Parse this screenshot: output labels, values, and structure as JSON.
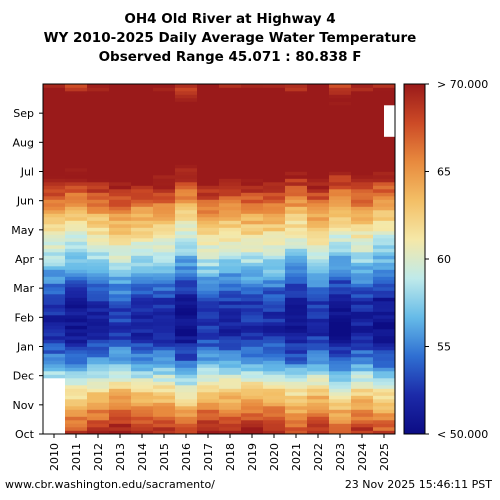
{
  "chart_data": {
    "type": "heatmap",
    "title": "OH4 Old River at Highway 4",
    "subtitle": "WY 2010-2025 Daily Average Water Temperature",
    "range_note": "Observed Range 45.071 : 80.838 F",
    "x": [
      "2010",
      "2011",
      "2012",
      "2013",
      "2014",
      "2015",
      "2016",
      "2017",
      "2018",
      "2019",
      "2020",
      "2021",
      "2022",
      "2023",
      "2024",
      "2025"
    ],
    "y_ticks": [
      "Oct",
      "Nov",
      "Dec",
      "Jan",
      "Feb",
      "Mar",
      "Apr",
      "May",
      "Jun",
      "Jul",
      "Aug",
      "Sep"
    ],
    "colorbar": {
      "min": 50,
      "max": 70,
      "labels": [
        "< 50.000",
        "55",
        "60",
        "65",
        "> 70.000"
      ],
      "ticks": [
        50,
        55,
        60,
        65,
        70
      ]
    },
    "colormap": [
      "#0c0c84",
      "#1c2aa8",
      "#2f6fd2",
      "#66bbe8",
      "#bfeaea",
      "#f5e8a8",
      "#f3bf66",
      "#e88a3e",
      "#cc4a26",
      "#9a1a1a"
    ],
    "monthly_mean_F": {
      "Oct": 66.5,
      "Nov": 61.5,
      "Dec": 55.0,
      "Jan": 51.0,
      "Feb": 51.8,
      "Mar": 55.5,
      "Apr": 59.5,
      "May": 63.5,
      "Jun": 68.5,
      "Jul": 73.0,
      "Aug": 73.0,
      "Sep": 71.5
    },
    "grid": false
  },
  "footer": {
    "left": "www.cbr.washington.edu/sacramento/",
    "right": "23 Nov 2025 15:46:11 PST"
  }
}
